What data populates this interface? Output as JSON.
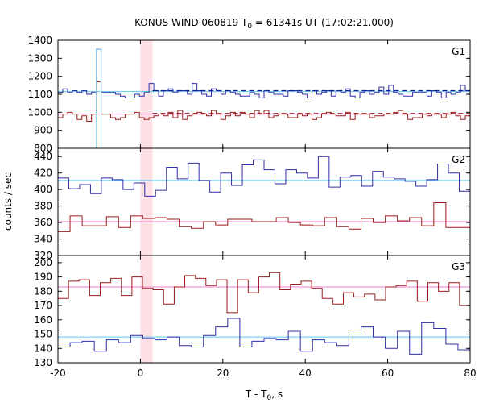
{
  "chart_data": {
    "type": "line",
    "title": {
      "main": "KONUS-WIND 060819 T",
      "sub": "0",
      "rest": " = 61341s UT (17:02:21.000)"
    },
    "xlabel": {
      "main": "T - T",
      "sub": "0",
      "rest": ", s"
    },
    "ylabel": "counts / sec",
    "xlim": [
      -20,
      80
    ],
    "xticks": [
      -20,
      0,
      20,
      40,
      60,
      80
    ],
    "trigger_band": {
      "x0": 0,
      "x1": 2.944,
      "color": "#fde0e4"
    },
    "bin_width": 2.944,
    "colors": {
      "blue": "#2f2fa6",
      "red": "#9c1a1a",
      "cyan": "#5ec6ec",
      "pink": "#f07ec8",
      "dash_blue": "#1a1a8c",
      "dash_red": "#7a0000",
      "pre_trigger": "#8fd3f0"
    },
    "panels": [
      {
        "label": "G1",
        "ylim": [
          800,
          1400
        ],
        "yticks": [
          800,
          900,
          1000,
          1100,
          1200,
          1300,
          1400
        ],
        "series": [
          {
            "name": "G1 high",
            "color_key": "blue",
            "values": [
              1110,
              1130,
              1110,
              1120,
              1110,
              1120,
              1100,
              1110,
              1350,
              1110,
              1110,
              1110,
              1100,
              1090,
              1080,
              1080,
              1100,
              1090,
              1110,
              1160,
              1120,
              1090,
              1120,
              1130,
              1110,
              1120,
              1120,
              1100,
              1160,
              1120,
              1100,
              1090,
              1130,
              1120,
              1100,
              1120,
              1110,
              1100,
              1090,
              1090,
              1110,
              1100,
              1080,
              1120,
              1110,
              1100,
              1100,
              1090,
              1120,
              1120,
              1110,
              1100,
              1080,
              1120,
              1100,
              1110,
              1120,
              1090,
              1120,
              1110,
              1130,
              1090,
              1080,
              1110,
              1120,
              1100,
              1110,
              1140,
              1100,
              1150,
              1110,
              1100,
              1090,
              1090,
              1110,
              1110,
              1110,
              1090,
              1120,
              1110,
              1080,
              1110,
              1100,
              1110,
              1150,
              1120
            ],
            "mean": 1115,
            "mean_color_key": "cyan",
            "dashed_mean": 1120
          },
          {
            "name": "G1 low",
            "color_key": "red",
            "values": [
              970,
              990,
              1000,
              990,
              960,
              980,
              950,
              990,
              1170,
              990,
              990,
              970,
              960,
              970,
              990,
              990,
              1000,
              970,
              960,
              970,
              980,
              990,
              980,
              1000,
              970,
              1010,
              960,
              980,
              990,
              1000,
              990,
              980,
              1010,
              990,
              960,
              980,
              1000,
              980,
              1000,
              990,
              970,
              1010,
              990,
              1010,
              970,
              980,
              990,
              990,
              970,
              970,
              990,
              980,
              990,
              960,
              970,
              990,
              1000,
              990,
              980,
              980,
              1000,
              960,
              990,
              990,
              990,
              970,
              980,
              980,
              990,
              990,
              1000,
              1010,
              990,
              960,
              970,
              970,
              990,
              980,
              990,
              990,
              970,
              990,
              1000,
              980,
              960,
              980
            ],
            "mean": 990,
            "mean_color_key": "pink",
            "dashed_mean": 993
          }
        ]
      },
      {
        "label": "G2",
        "ylim": [
          320,
          450
        ],
        "yticks": [
          320,
          340,
          360,
          380,
          400,
          420,
          440
        ],
        "series": [
          {
            "name": "G2 high",
            "color_key": "blue",
            "values": [
              414,
              401,
              406,
              395,
              414,
              412,
              400,
              408,
              392,
              399,
              427,
              413,
              432,
              411,
              397,
              420,
              405,
              430,
              436,
              424,
              407,
              424,
              420,
              414,
              440,
              403,
              415,
              417,
              404,
              422,
              415,
              413,
              410,
              404,
              412,
              431,
              420,
              398
            ],
            "mean": 411,
            "mean_color_key": "cyan"
          },
          {
            "name": "G2 low",
            "color_key": "red",
            "values": [
              349,
              368,
              356,
              356,
              367,
              354,
              368,
              365,
              366,
              364,
              355,
              353,
              361,
              357,
              364,
              364,
              361,
              361,
              366,
              360,
              357,
              356,
              366,
              355,
              352,
              365,
              360,
              368,
              362,
              366,
              356,
              384,
              354,
              354
            ],
            "mean": 361,
            "mean_color_key": "pink"
          }
        ]
      },
      {
        "label": "G3",
        "ylim": [
          130,
          205
        ],
        "yticks": [
          130,
          140,
          150,
          160,
          170,
          180,
          190,
          200
        ],
        "series": [
          {
            "name": "G3 high",
            "color_key": "red",
            "values": [
              175,
              187,
              188,
              177,
              186,
              189,
              177,
              190,
              182,
              181,
              171,
              183,
              191,
              189,
              184,
              188,
              165,
              188,
              179,
              190,
              193,
              181,
              185,
              187,
              182,
              175,
              171,
              179,
              176,
              178,
              174,
              183,
              184,
              187,
              173,
              186,
              180,
              186,
              170
            ],
            "mean": 183,
            "mean_color_key": "pink"
          },
          {
            "name": "G3 low",
            "color_key": "blue",
            "values": [
              141,
              144,
              145,
              138,
              146,
              144,
              149,
              147,
              146,
              148,
              142,
              141,
              149,
              155,
              161,
              141,
              145,
              147,
              146,
              152,
              138,
              146,
              144,
              142,
              150,
              155,
              148,
              140,
              152,
              136,
              158,
              154,
              143,
              139
            ],
            "mean": 148,
            "mean_color_key": "cyan"
          }
        ]
      }
    ]
  }
}
